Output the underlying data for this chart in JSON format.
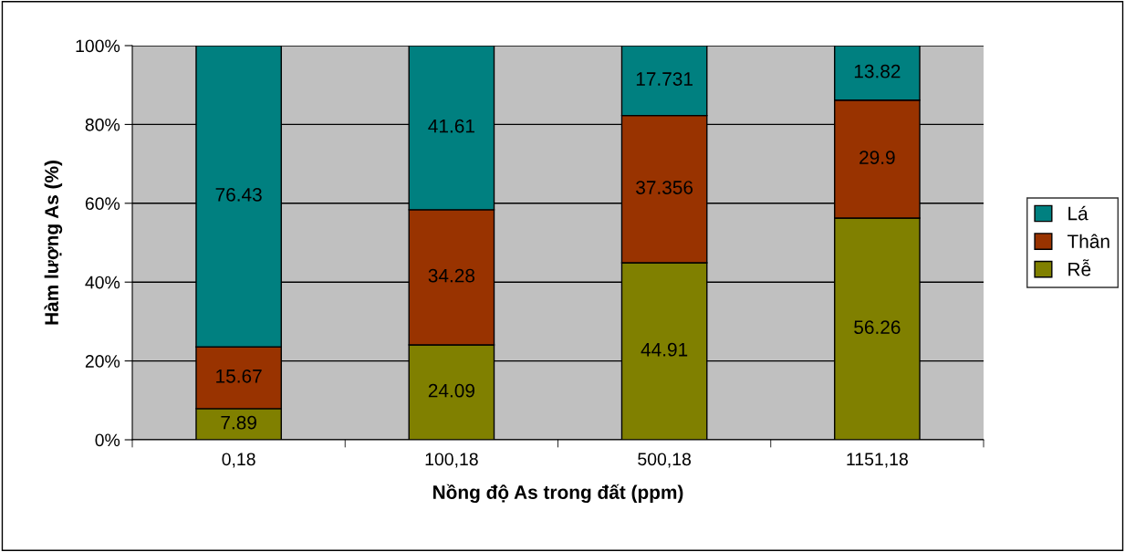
{
  "chart_data": {
    "type": "bar",
    "stacked": true,
    "xlabel": "Nồng độ As trong đất (ppm)",
    "ylabel": "Hàm lượng As (%)",
    "categories": [
      "0,18",
      "100,18",
      "500,18",
      "1151,18"
    ],
    "series": [
      {
        "name": "Rễ",
        "color": "#808000",
        "values": [
          7.89,
          24.09,
          44.91,
          56.26
        ]
      },
      {
        "name": "Thân",
        "color": "#993300",
        "values": [
          15.67,
          34.28,
          37.356,
          29.9
        ]
      },
      {
        "name": "Lá",
        "color": "#008080",
        "values": [
          76.43,
          41.61,
          17.731,
          13.82
        ]
      }
    ],
    "ylim": [
      0,
      100
    ],
    "yticks": [
      {
        "value": 0,
        "label": "0%"
      },
      {
        "value": 20,
        "label": "20%"
      },
      {
        "value": 40,
        "label": "40%"
      },
      {
        "value": 60,
        "label": "60%"
      },
      {
        "value": 80,
        "label": "80%"
      },
      {
        "value": 100,
        "label": "100%"
      }
    ],
    "grid": "y",
    "legend": "right",
    "data_labels": true
  }
}
